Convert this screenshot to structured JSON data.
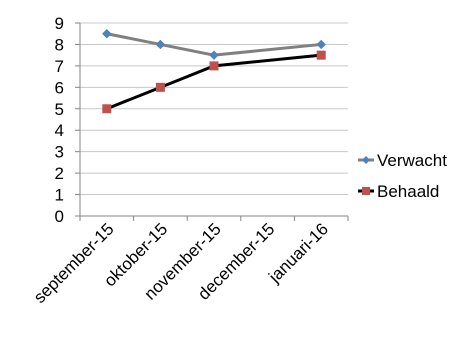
{
  "chart_data": {
    "type": "line",
    "categories": [
      "september-15",
      "oktober-15",
      "november-15",
      "december-15",
      "januari-16"
    ],
    "series": [
      {
        "name": "Verwacht",
        "values": [
          8.5,
          8,
          7.5,
          null,
          8
        ],
        "color": "#808080",
        "marker": "diamond",
        "marker_color": "#4f81bd"
      },
      {
        "name": "Behaald",
        "values": [
          5,
          6,
          7,
          null,
          7.5
        ],
        "color": "#000000",
        "marker": "square",
        "marker_color": "#c0504d"
      }
    ],
    "ylim": [
      0,
      9
    ],
    "yticks": [
      0,
      1,
      2,
      3,
      4,
      5,
      6,
      7,
      8,
      9
    ],
    "grid": true,
    "legend_position": "right",
    "title": "",
    "xlabel": "",
    "ylabel": ""
  }
}
